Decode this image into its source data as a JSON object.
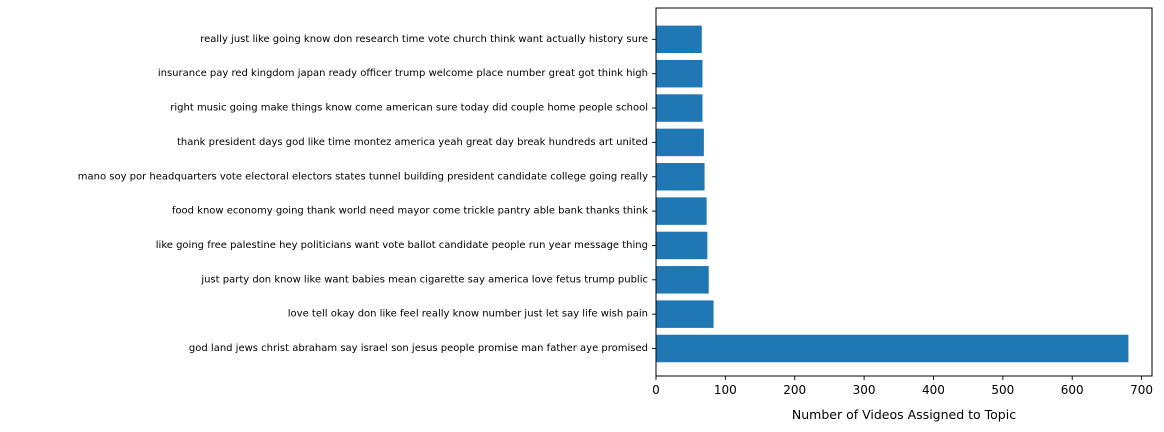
{
  "chart_data": {
    "type": "bar",
    "orientation": "horizontal",
    "xlabel": "Number of Videos Assigned to Topic",
    "xlim": [
      0,
      715
    ],
    "xticks": [
      0,
      100,
      200,
      300,
      400,
      500,
      600,
      700
    ],
    "bar_color": "#1f77b4",
    "grid": false,
    "categories": [
      "god land jews christ abraham say israel son jesus people promise man father aye promised",
      "love tell okay don like feel really know number just let say life wish pain",
      "just party don know like want babies mean cigarette say america love fetus trump public",
      "like going free palestine hey politicians want vote ballot candidate people run year message thing",
      "food know economy going thank world need mayor come trickle pantry able bank thanks think",
      "mano soy por headquarters vote electoral electors states tunnel building president candidate college going really",
      "thank president days god like time montez america yeah great day break hundreds art united",
      "right music going make things know come american sure today did couple home people school",
      "insurance pay red kingdom japan ready officer trump welcome place number great got think high",
      "really just like going know don research time vote church think want actually history sure"
    ],
    "values": [
      681,
      83,
      76,
      74,
      73,
      70,
      69,
      67,
      67,
      66
    ]
  }
}
